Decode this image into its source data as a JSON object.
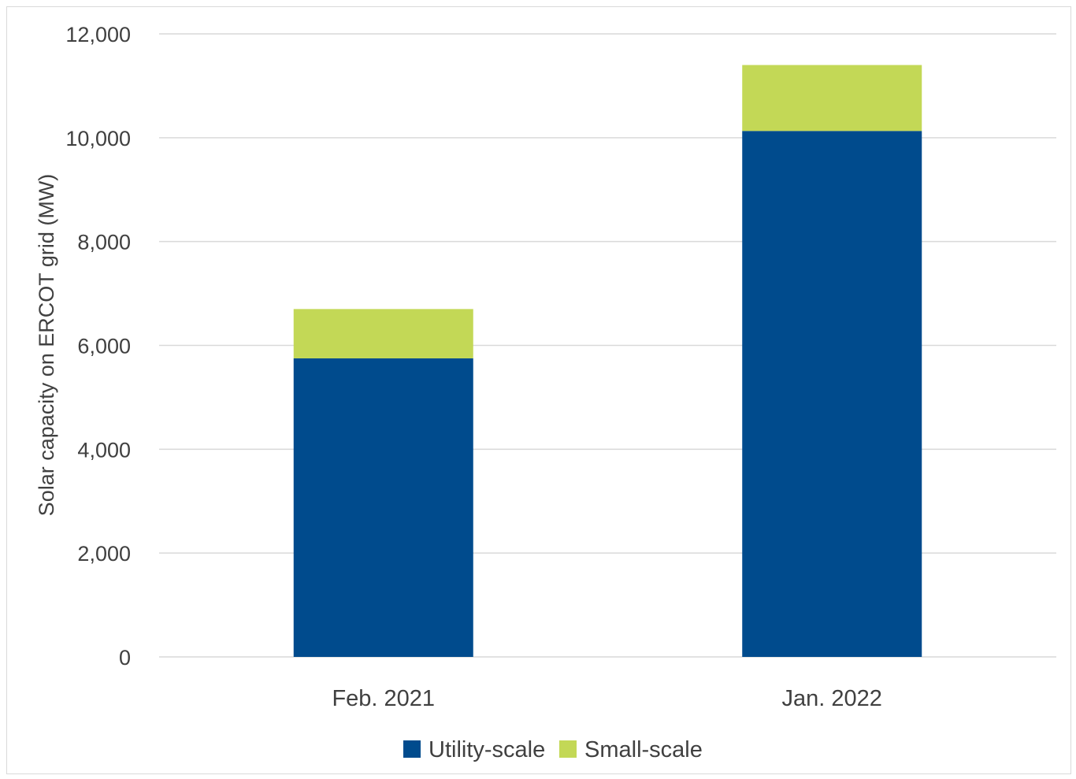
{
  "chart_data": {
    "type": "bar",
    "stacked": true,
    "categories": [
      "Feb. 2021",
      "Jan. 2022"
    ],
    "series": [
      {
        "name": "Utility-scale",
        "values": [
          5750,
          10130
        ],
        "color": "#004b8d"
      },
      {
        "name": "Small-scale",
        "values": [
          950,
          1270
        ],
        "color": "#c3d856"
      }
    ],
    "ylabel": "Solar capacity on ERCOT grid (MW)",
    "ylim": [
      0,
      12000
    ],
    "yticks": [
      0,
      2000,
      4000,
      6000,
      8000,
      10000,
      12000
    ],
    "ytick_labels": [
      "0",
      "2,000",
      "4,000",
      "6,000",
      "8,000",
      "10,000",
      "12,000"
    ],
    "grid": true,
    "legend_position": "bottom",
    "gridline_color": "#d9d9d9"
  }
}
